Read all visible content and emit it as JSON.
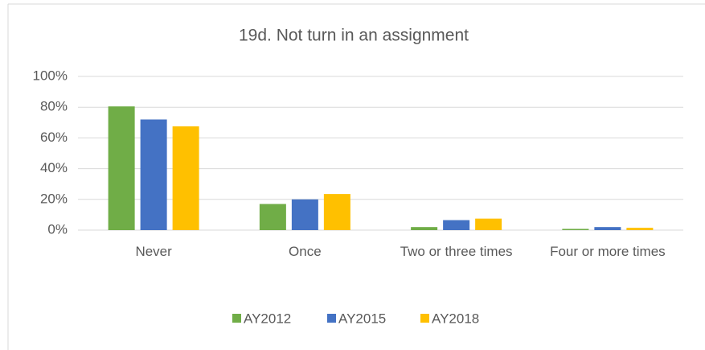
{
  "chart_data": {
    "type": "bar",
    "title": "19d. Not turn in an assignment",
    "categories": [
      "Never",
      "Once",
      "Two or three times",
      "Four or more times"
    ],
    "series": [
      {
        "name": "AY2012",
        "color": "#70ad47",
        "values": [
          80.5,
          17,
          2,
          0.8
        ]
      },
      {
        "name": "AY2015",
        "color": "#4472c4",
        "values": [
          72,
          20,
          6.5,
          2
        ]
      },
      {
        "name": "AY2018",
        "color": "#ffc000",
        "values": [
          67.5,
          23.5,
          7.5,
          1.5
        ]
      }
    ],
    "ylim": [
      0,
      100
    ],
    "yticks": [
      {
        "value": 0,
        "label": "0%"
      },
      {
        "value": 20,
        "label": "20%"
      },
      {
        "value": 40,
        "label": "40%"
      },
      {
        "value": 60,
        "label": "60%"
      },
      {
        "value": 80,
        "label": "80%"
      },
      {
        "value": 100,
        "label": "100%"
      }
    ],
    "grid": true,
    "legend": "bottom"
  }
}
